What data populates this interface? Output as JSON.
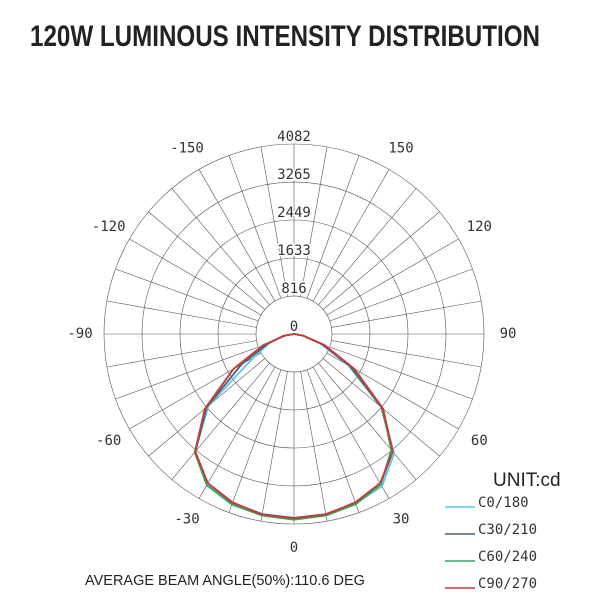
{
  "chart_data": {
    "type": "polar",
    "title": "120W LUMINOUS INTENSITY DISTRIBUTION",
    "unit_label": "UNIT:cd",
    "annotation": "AVERAGE BEAM ANGLE(50%):110.6 DEG",
    "rlim": [
      0,
      4082
    ],
    "rticks": [
      0,
      816,
      1633,
      2449,
      3265,
      4082
    ],
    "angle_ticks": [
      -150,
      -120,
      -90,
      -60,
      -30,
      0,
      30,
      60,
      90,
      120,
      150
    ],
    "angles": [
      -90,
      -80,
      -70,
      -60,
      -50,
      -40,
      -30,
      -20,
      -10,
      0,
      10,
      20,
      30,
      40,
      50,
      60,
      70,
      80,
      90
    ],
    "legend": "bottom-right",
    "series": [
      {
        "name": "C0/180",
        "color": "#5cc6e4",
        "values": [
          0,
          250,
          550,
          1000,
          2400,
          3300,
          3750,
          3880,
          3940,
          3960,
          3940,
          3870,
          3780,
          3350,
          2450,
          1350,
          600,
          180,
          0
        ]
      },
      {
        "name": "C30/210",
        "color": "#4a5f7e",
        "values": [
          0,
          220,
          600,
          1300,
          2450,
          3300,
          3700,
          3860,
          3930,
          3950,
          3930,
          3860,
          3720,
          3300,
          2450,
          1400,
          650,
          200,
          0
        ]
      },
      {
        "name": "C60/240",
        "color": "#27ad5c",
        "values": [
          0,
          200,
          700,
          1500,
          2500,
          3320,
          3750,
          3900,
          3960,
          3990,
          3960,
          3890,
          3730,
          3250,
          2480,
          1480,
          700,
          200,
          0
        ]
      },
      {
        "name": "C90/270",
        "color": "#d43434",
        "values": [
          0,
          200,
          700,
          1500,
          2500,
          3300,
          3700,
          3850,
          3940,
          3960,
          3940,
          3850,
          3700,
          3300,
          2500,
          1500,
          700,
          200,
          0
        ]
      }
    ]
  }
}
